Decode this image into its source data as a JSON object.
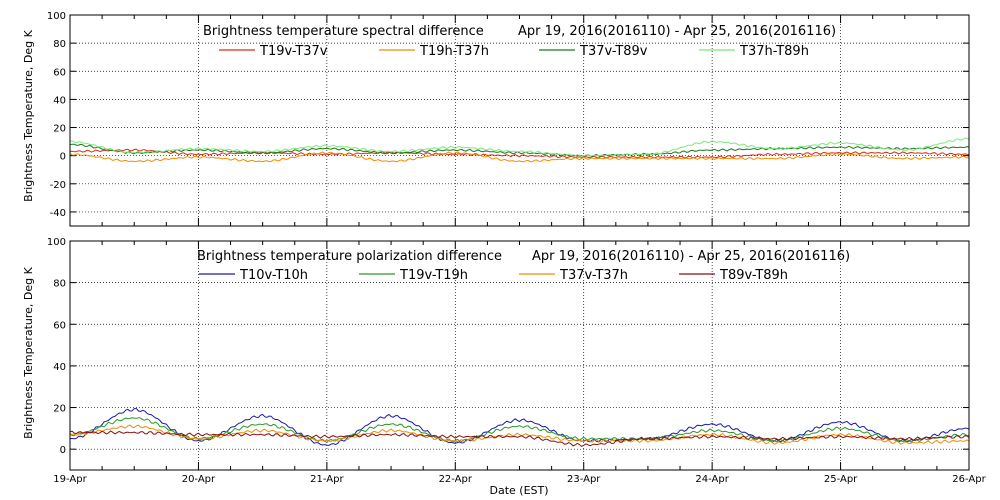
{
  "chart_data": [
    {
      "type": "line",
      "title": "Brightness temperature spectral difference",
      "date_range": "Apr 19, 2016(2016110) - Apr 25, 2016(2016116)",
      "ylabel": "Brightness Temperature, Deg K",
      "ylim": [
        -50,
        100
      ],
      "yticks": [
        -40,
        -20,
        0,
        20,
        40,
        60,
        80,
        100
      ],
      "x": [
        "19-Apr",
        "19-Apr",
        "20-Apr",
        "20-Apr",
        "21-Apr",
        "21-Apr",
        "22-Apr",
        "22-Apr",
        "23-Apr",
        "23-Apr",
        "24-Apr",
        "24-Apr",
        "25-Apr",
        "25-Apr",
        "26-Apr"
      ],
      "x_days": [
        0,
        0.5,
        1,
        1.5,
        2,
        2.5,
        3,
        3.5,
        4,
        4.5,
        5,
        5.5,
        6,
        6.5,
        7
      ],
      "series": [
        {
          "name": "T19v-T37v",
          "color": "#dd2a1b",
          "values": [
            3,
            4,
            1,
            2,
            1,
            2,
            1,
            0,
            -1,
            -1,
            -1,
            1,
            2,
            2,
            1
          ]
        },
        {
          "name": "T19h-T37h",
          "color": "#f08c00",
          "values": [
            1,
            -4,
            -1,
            -4,
            2,
            -4,
            2,
            -4,
            -2,
            -2,
            -2,
            -2,
            1,
            -2,
            -1
          ]
        },
        {
          "name": "T37v-T89v",
          "color": "#157a15",
          "values": [
            8,
            2,
            4,
            2,
            5,
            2,
            4,
            2,
            0,
            1,
            4,
            5,
            6,
            5,
            6
          ]
        },
        {
          "name": "T37h-T89h",
          "color": "#7ce87c",
          "values": [
            10,
            2,
            5,
            3,
            7,
            3,
            6,
            3,
            0,
            1,
            10,
            5,
            9,
            4,
            12
          ]
        }
      ]
    },
    {
      "type": "line",
      "title": "Brightness temperature polarization difference",
      "date_range": "Apr 19, 2016(2016110) - Apr 25, 2016(2016116)",
      "ylabel": "Brightness Temperature, Deg K",
      "xlabel": "Date (EST)",
      "ylim": [
        -10,
        100
      ],
      "yticks": [
        0,
        20,
        40,
        60,
        80,
        100
      ],
      "xticks": [
        "19-Apr",
        "20-Apr",
        "21-Apr",
        "22-Apr",
        "23-Apr",
        "24-Apr",
        "25-Apr",
        "26-Apr"
      ],
      "x_days": [
        0,
        0.5,
        1,
        1.5,
        2,
        2.5,
        3,
        3.5,
        4,
        4.5,
        5,
        5.5,
        6,
        6.5,
        7
      ],
      "series": [
        {
          "name": "T10v-T10h",
          "color": "#1a1aa8",
          "values": [
            5,
            19,
            4,
            16,
            2,
            16,
            3,
            14,
            4,
            5,
            12,
            4,
            13,
            4,
            10
          ]
        },
        {
          "name": "T19v-T19h",
          "color": "#2a9a2a",
          "values": [
            7,
            15,
            5,
            12,
            4,
            12,
            4,
            11,
            5,
            5,
            9,
            4,
            10,
            4,
            7
          ]
        },
        {
          "name": "T37v-T37h",
          "color": "#f08c00",
          "values": [
            7,
            11,
            5,
            9,
            4,
            9,
            4,
            7,
            4,
            4,
            7,
            3,
            7,
            3,
            4
          ]
        },
        {
          "name": "T89v-T89h",
          "color": "#8a1010",
          "values": [
            8,
            8,
            7,
            7,
            6,
            7,
            6,
            6,
            2,
            5,
            6,
            5,
            6,
            5,
            6
          ]
        }
      ]
    }
  ]
}
